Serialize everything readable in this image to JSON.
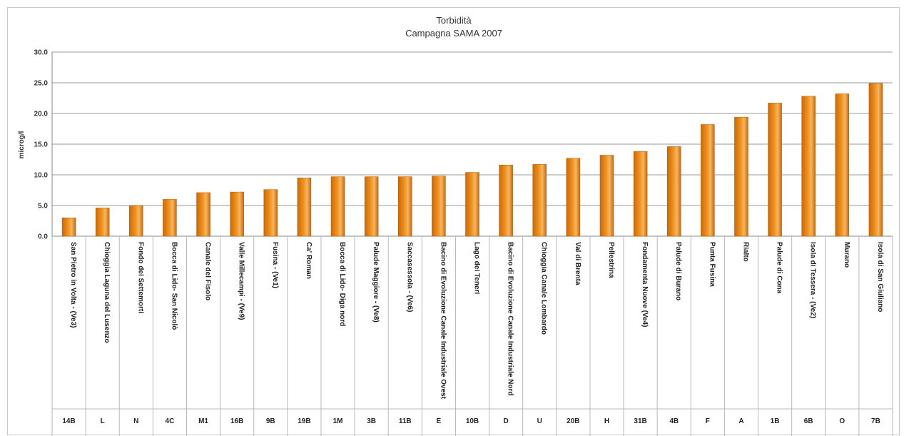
{
  "chart_data": {
    "type": "bar",
    "title": "Torbidità",
    "subtitle": "Campagna SAMA 2007",
    "ylabel": "microg/l",
    "xlabel": "",
    "ylim": [
      0,
      30
    ],
    "yticks": [
      "0.0",
      "5.0",
      "10.0",
      "15.0",
      "20.0",
      "25.0",
      "30.0"
    ],
    "grid": true,
    "bar_color": "#f0921e",
    "categories": [
      "San Pietro in Volta - (Ve3)",
      "Chioggia Laguna del Lusenzo",
      "Fondo dei Settemorti",
      "Bocca di Lido- San Nicolò",
      "Canale del Fisolo",
      "Valle Millecampi - (Ve9)",
      "Fusina - (Ve1)",
      "Ca' Roman",
      "Bocca di Lido- Diga nord",
      "Palude Maggiore - (Ve8)",
      "Saccasessola - (Ve6)",
      "Bacino di Evoluzione Canale Industriale Ovest",
      "Lago dei Teneri",
      "Bacino di Evoluzione Canale Industriale Nord",
      "Chioggia Canale Lombardo",
      "Val di Brenta",
      "Pellestrina",
      "Fondamenta Nuove (Ve4)",
      "Palude di Burano",
      "Punta Fusina",
      "Rialto",
      "Palude di Cona",
      "Isola di Tessera - (Ve2)",
      "Murano",
      "Isola di San Giuliano"
    ],
    "codes": [
      "14B",
      "L",
      "N",
      "4C",
      "M1",
      "16B",
      "9B",
      "19B",
      "1M",
      "3B",
      "11B",
      "E",
      "10B",
      "D",
      "U",
      "20B",
      "H",
      "31B",
      "4B",
      "F",
      "A",
      "1B",
      "6B",
      "O",
      "7B"
    ],
    "values": [
      3.0,
      4.6,
      5.0,
      6.0,
      7.1,
      7.2,
      7.6,
      9.5,
      9.7,
      9.7,
      9.7,
      9.8,
      10.4,
      11.6,
      11.7,
      12.7,
      13.2,
      13.8,
      14.6,
      18.2,
      19.4,
      21.7,
      22.8,
      23.2,
      24.9
    ]
  }
}
